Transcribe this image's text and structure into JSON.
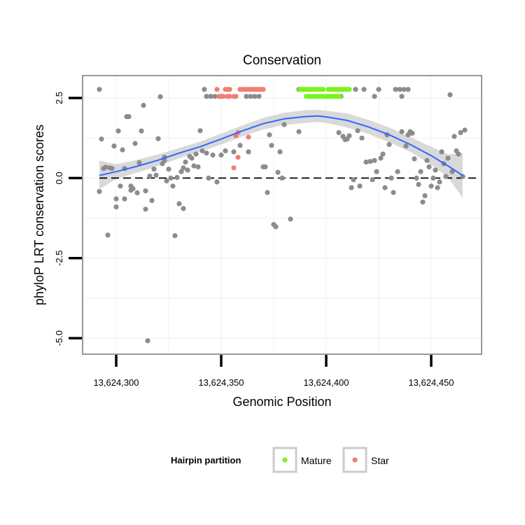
{
  "chart_data": {
    "type": "scatter",
    "title": "Conservation",
    "xlabel": "Genomic Position",
    "ylabel": "phyloP LRT conservation scores",
    "xlim": [
      13624284,
      13624474
    ],
    "ylim": [
      -5.5,
      3.2
    ],
    "x_ticks": [
      13624300,
      13624350,
      13624400,
      13624450
    ],
    "x_tick_labels": [
      "13,624,300",
      "13,624,350",
      "13,624,400",
      "13,624,450"
    ],
    "y_ticks": [
      -5.0,
      -2.5,
      0.0,
      2.5
    ],
    "y_tick_labels": [
      "-5.0",
      "-2.5",
      "0.0",
      "2.5"
    ],
    "reference_line": {
      "y": 0,
      "style": "dashed"
    },
    "colors": {
      "Other": "#8c8c8c",
      "Mature": "#7cf21e",
      "Star": "#f07f72",
      "smooth": "#3366ff",
      "ribbon": "#d2d2d2"
    },
    "legend": {
      "title": "Hairpin partition",
      "position": "bottom",
      "entries": [
        {
          "label": "Mature",
          "color": "#7cf21e"
        },
        {
          "label": "Star",
          "color": "#f07f72"
        }
      ]
    },
    "series": [
      {
        "name": "Other",
        "points": [
          [
            13624292,
            2.77
          ],
          [
            13624292,
            -0.42
          ],
          [
            13624293,
            1.22
          ],
          [
            13624294,
            0.3
          ],
          [
            13624295,
            0.34
          ],
          [
            13624296,
            -1.78
          ],
          [
            13624297,
            0.32
          ],
          [
            13624298,
            0.3
          ],
          [
            13624299,
            1.0
          ],
          [
            13624300,
            -0.65
          ],
          [
            13624300,
            -0.9
          ],
          [
            13624301,
            1.47
          ],
          [
            13624302,
            -0.25
          ],
          [
            13624303,
            0.88
          ],
          [
            13624304,
            -0.65
          ],
          [
            13624304,
            0.3
          ],
          [
            13624305,
            1.92
          ],
          [
            13624306,
            1.92
          ],
          [
            13624307,
            -0.25
          ],
          [
            13624307,
            -0.38
          ],
          [
            13624308,
            -0.33
          ],
          [
            13624309,
            1.08
          ],
          [
            13624310,
            -0.46
          ],
          [
            13624311,
            0.48
          ],
          [
            13624312,
            1.47
          ],
          [
            13624313,
            2.27
          ],
          [
            13624314,
            -0.4
          ],
          [
            13624314,
            -0.97
          ],
          [
            13624315,
            -5.08
          ],
          [
            13624316,
            0.06
          ],
          [
            13624317,
            -0.7
          ],
          [
            13624318,
            0.28
          ],
          [
            13624319,
            0.09
          ],
          [
            13624320,
            1.23
          ],
          [
            13624321,
            2.54
          ],
          [
            13624322,
            0.45
          ],
          [
            13624323,
            0.55
          ],
          [
            13624323,
            0.65
          ],
          [
            13624324,
            -0.09
          ],
          [
            13624325,
            0.28
          ],
          [
            13624326,
            0.0
          ],
          [
            13624327,
            -0.25
          ],
          [
            13624328,
            -1.8
          ],
          [
            13624329,
            0.02
          ],
          [
            13624330,
            -0.8
          ],
          [
            13624331,
            0.2
          ],
          [
            13624332,
            -0.95
          ],
          [
            13624332,
            0.32
          ],
          [
            13624333,
            0.5
          ],
          [
            13624334,
            0.25
          ],
          [
            13624335,
            0.68
          ],
          [
            13624336,
            0.62
          ],
          [
            13624337,
            0.38
          ],
          [
            13624338,
            0.75
          ],
          [
            13624339,
            0.35
          ],
          [
            13624340,
            1.48
          ],
          [
            13624341,
            0.85
          ],
          [
            13624342,
            2.77
          ],
          [
            13624343,
            0.78
          ],
          [
            13624343,
            2.55
          ],
          [
            13624344,
            0.0
          ],
          [
            13624345,
            2.55
          ],
          [
            13624346,
            0.72
          ],
          [
            13624347,
            2.55
          ],
          [
            13624348,
            -0.12
          ],
          [
            13624350,
            0.72
          ],
          [
            13624352,
            0.85
          ],
          [
            13624356,
            0.82
          ],
          [
            13624359,
            1.02
          ],
          [
            13624362,
            2.55
          ],
          [
            13624363,
            0.82
          ],
          [
            13624364,
            2.55
          ],
          [
            13624366,
            2.55
          ],
          [
            13624368,
            2.55
          ],
          [
            13624370,
            0.35
          ],
          [
            13624371,
            0.35
          ],
          [
            13624372,
            -0.45
          ],
          [
            13624373,
            1.35
          ],
          [
            13624374,
            1.02
          ],
          [
            13624375,
            -1.45
          ],
          [
            13624376,
            -1.52
          ],
          [
            13624377,
            0.18
          ],
          [
            13624378,
            0.82
          ],
          [
            13624379,
            0.0
          ],
          [
            13624380,
            1.67
          ],
          [
            13624383,
            -1.28
          ],
          [
            13624387,
            1.45
          ],
          [
            13624387,
            2.77
          ],
          [
            13624403,
            2.55
          ],
          [
            13624406,
            1.42
          ],
          [
            13624407,
            2.55
          ],
          [
            13624408,
            1.3
          ],
          [
            13624409,
            1.2
          ],
          [
            13624410,
            1.22
          ],
          [
            13624411,
            1.32
          ],
          [
            13624412,
            -0.3
          ],
          [
            13624413,
            -0.05
          ],
          [
            13624414,
            2.77
          ],
          [
            13624415,
            1.48
          ],
          [
            13624416,
            -0.25
          ],
          [
            13624417,
            1.25
          ],
          [
            13624418,
            2.77
          ],
          [
            13624419,
            0.5
          ],
          [
            13624421,
            0.52
          ],
          [
            13624422,
            -0.05
          ],
          [
            13624423,
            2.55
          ],
          [
            13624423,
            0.55
          ],
          [
            13624424,
            0.2
          ],
          [
            13624425,
            2.77
          ],
          [
            13624426,
            0.62
          ],
          [
            13624427,
            0.75
          ],
          [
            13624428,
            -0.3
          ],
          [
            13624429,
            1.35
          ],
          [
            13624430,
            1.05
          ],
          [
            13624431,
            0.0
          ],
          [
            13624432,
            -0.45
          ],
          [
            13624433,
            2.77
          ],
          [
            13624434,
            0.2
          ],
          [
            13624435,
            2.77
          ],
          [
            13624436,
            2.55
          ],
          [
            13624436,
            1.45
          ],
          [
            13624437,
            2.77
          ],
          [
            13624438,
            1.0
          ],
          [
            13624439,
            2.77
          ],
          [
            13624439,
            1.35
          ],
          [
            13624440,
            1.45
          ],
          [
            13624441,
            1.4
          ],
          [
            13624442,
            0.6
          ],
          [
            13624443,
            0.0
          ],
          [
            13624444,
            -0.2
          ],
          [
            13624445,
            0.2
          ],
          [
            13624446,
            -0.75
          ],
          [
            13624447,
            -0.55
          ],
          [
            13624448,
            0.55
          ],
          [
            13624449,
            0.35
          ],
          [
            13624450,
            -0.25
          ],
          [
            13624451,
            0.0
          ],
          [
            13624452,
            0.25
          ],
          [
            13624453,
            -0.3
          ],
          [
            13624454,
            -0.12
          ],
          [
            13624455,
            0.82
          ],
          [
            13624456,
            0.45
          ],
          [
            13624457,
            0.05
          ],
          [
            13624458,
            0.62
          ],
          [
            13624459,
            2.6
          ],
          [
            13624460,
            0.2
          ],
          [
            13624461,
            1.3
          ],
          [
            13624462,
            0.85
          ],
          [
            13624463,
            0.75
          ],
          [
            13624464,
            1.42
          ],
          [
            13624465,
            0.05
          ],
          [
            13624466,
            1.5
          ]
        ]
      },
      {
        "name": "Mature",
        "points": [
          [
            13624387.5,
            2.77
          ],
          [
            13624388.5,
            2.77
          ],
          [
            13624389.5,
            2.77
          ],
          [
            13624390.5,
            2.77
          ],
          [
            13624391.5,
            2.77
          ],
          [
            13624392.5,
            2.77
          ],
          [
            13624393.5,
            2.77
          ],
          [
            13624394.5,
            2.77
          ],
          [
            13624395.5,
            2.77
          ],
          [
            13624396.5,
            2.77
          ],
          [
            13624397.5,
            2.77
          ],
          [
            13624398.5,
            2.77
          ],
          [
            13624401,
            2.77
          ],
          [
            13624402,
            2.77
          ],
          [
            13624403,
            2.77
          ],
          [
            13624404,
            2.77
          ],
          [
            13624405,
            2.77
          ],
          [
            13624406,
            2.77
          ],
          [
            13624407,
            2.77
          ],
          [
            13624408,
            2.77
          ],
          [
            13624409,
            2.77
          ],
          [
            13624410,
            2.77
          ],
          [
            13624411,
            2.77
          ],
          [
            13624390.5,
            2.55
          ],
          [
            13624391.5,
            2.55
          ],
          [
            13624392.5,
            2.55
          ],
          [
            13624393.5,
            2.55
          ],
          [
            13624394.5,
            2.55
          ],
          [
            13624395.5,
            2.55
          ],
          [
            13624396.5,
            2.55
          ],
          [
            13624397.5,
            2.55
          ],
          [
            13624398.5,
            2.55
          ],
          [
            13624399.5,
            2.55
          ],
          [
            13624400.5,
            2.55
          ],
          [
            13624401.5,
            2.55
          ],
          [
            13624402.5,
            2.55
          ],
          [
            13624403.5,
            2.55
          ],
          [
            13624404.5,
            2.55
          ],
          [
            13624405.5,
            2.55
          ],
          [
            13624406.5,
            2.55
          ]
        ]
      },
      {
        "name": "Star",
        "points": [
          [
            13624348,
            2.77
          ],
          [
            13624352,
            2.77
          ],
          [
            13624353,
            2.77
          ],
          [
            13624354,
            2.77
          ],
          [
            13624359,
            2.77
          ],
          [
            13624360,
            2.77
          ],
          [
            13624361,
            2.77
          ],
          [
            13624362,
            2.77
          ],
          [
            13624363,
            2.77
          ],
          [
            13624364,
            2.77
          ],
          [
            13624365,
            2.77
          ],
          [
            13624366,
            2.77
          ],
          [
            13624367,
            2.77
          ],
          [
            13624368,
            2.77
          ],
          [
            13624369,
            2.77
          ],
          [
            13624370,
            2.77
          ],
          [
            13624349,
            2.55
          ],
          [
            13624350,
            2.55
          ],
          [
            13624351,
            2.55
          ],
          [
            13624353,
            2.55
          ],
          [
            13624354,
            2.55
          ],
          [
            13624356,
            2.55
          ],
          [
            13624357,
            2.55
          ],
          [
            13624357,
            1.32
          ],
          [
            13624358,
            1.42
          ],
          [
            13624363,
            1.28
          ],
          [
            13624358,
            0.65
          ],
          [
            13624356,
            0.32
          ]
        ]
      }
    ],
    "smooth_fit": {
      "method": "loess",
      "x": [
        13624292,
        13624300,
        13624310,
        13624320,
        13624330,
        13624340,
        13624350,
        13624360,
        13624370,
        13624380,
        13624390,
        13624396,
        13624400,
        13624410,
        13624420,
        13624430,
        13624440,
        13624450,
        13624458,
        13624465
      ],
      "y": [
        0.08,
        0.2,
        0.37,
        0.56,
        0.78,
        0.98,
        1.22,
        1.47,
        1.7,
        1.85,
        1.92,
        1.94,
        1.91,
        1.8,
        1.6,
        1.35,
        1.05,
        0.7,
        0.38,
        0.08
      ],
      "lower": [
        -0.35,
        -0.03,
        0.17,
        0.38,
        0.62,
        0.82,
        1.05,
        1.3,
        1.52,
        1.66,
        1.72,
        1.75,
        1.72,
        1.58,
        1.38,
        1.12,
        0.82,
        0.42,
        0.02,
        -0.62
      ],
      "upper": [
        0.55,
        0.43,
        0.57,
        0.74,
        0.94,
        1.14,
        1.39,
        1.64,
        1.88,
        2.04,
        2.12,
        2.13,
        2.1,
        2.02,
        1.82,
        1.58,
        1.28,
        0.98,
        0.74,
        0.78
      ]
    }
  }
}
